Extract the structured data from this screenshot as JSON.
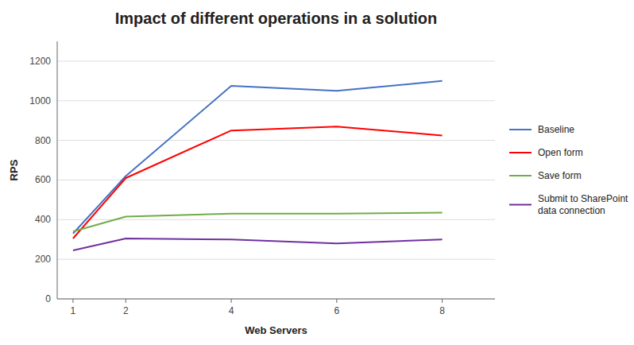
{
  "chart_data": {
    "type": "line",
    "title": "Impact of different operations in a solution",
    "xlabel": "Web Servers",
    "ylabel": "RPS",
    "x": [
      1,
      2,
      4,
      6,
      8
    ],
    "series": [
      {
        "name": "Baseline",
        "color": "#4472C4",
        "values": [
          330,
          620,
          1075,
          1050,
          1100
        ]
      },
      {
        "name": "Open form",
        "color": "#FF0000",
        "values": [
          305,
          610,
          850,
          870,
          825
        ]
      },
      {
        "name": "Save form",
        "color": "#70AD47",
        "values": [
          340,
          415,
          430,
          430,
          435
        ]
      },
      {
        "name": "Submit to SharePoint\ndata connection",
        "color": "#7030A0",
        "values": [
          245,
          305,
          300,
          280,
          300
        ]
      }
    ],
    "xlim": [
      0.7,
      9
    ],
    "xticks": [
      1,
      2,
      4,
      6,
      8
    ],
    "ylim": [
      0,
      1300
    ],
    "yticks": [
      0,
      200,
      400,
      600,
      800,
      1000,
      1200
    ],
    "grid": true,
    "legend": "right"
  }
}
